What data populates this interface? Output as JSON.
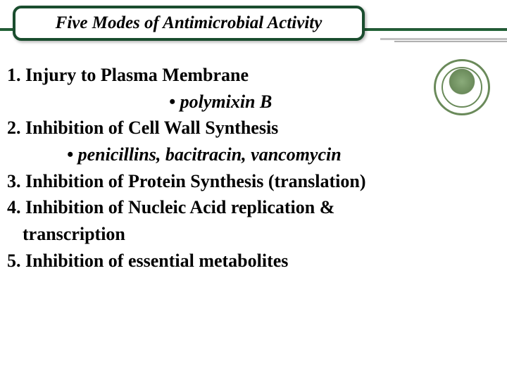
{
  "header": {
    "title": "Five Modes of Antimicrobial Activity",
    "border_color": "#1a4d2e",
    "bg_color": "#ffffff"
  },
  "content": {
    "items": [
      {
        "num": "1.",
        "text": "Injury to Plasma Membrane",
        "example": "• polymixin B",
        "example_class": "ex1"
      },
      {
        "num": "2.",
        "text": "Inhibition of Cell Wall Synthesis",
        "example": "• penicillins, bacitracin, vancomycin",
        "example_class": "ex2"
      },
      {
        "num": "3.",
        "text": "Inhibition of Protein Synthesis (translation)"
      },
      {
        "num": "4.",
        "text": "Inhibition of Nucleic Acid replication &",
        "cont": "transcription"
      },
      {
        "num": "5.",
        "text": "Inhibition of essential metabolites"
      }
    ]
  },
  "colors": {
    "theme_green": "#1a4d2e",
    "logo_green": "#6a8a5a",
    "text": "#000000",
    "bg": "#ffffff"
  }
}
